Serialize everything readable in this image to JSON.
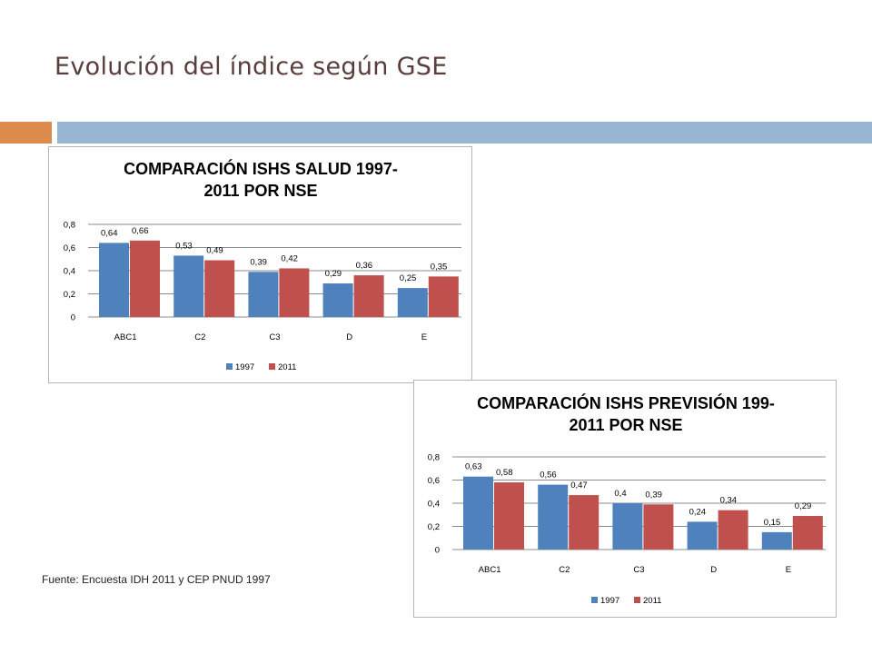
{
  "slide": {
    "title": "Evolución del índice según GSE",
    "source": "Fuente: Encuesta IDH 2011 y CEP PNUD 1997"
  },
  "colors": {
    "series_1997": "#4f81bd",
    "series_2011": "#c0504d",
    "accent_orange": "#dd8a4d",
    "accent_blue": "#98b6d4",
    "title_text": "#5a3e3b"
  },
  "chart_data": [
    {
      "type": "bar",
      "title_lines": [
        "COMPARACIÓN ISHS SALUD 1997-",
        "2011 POR NSE"
      ],
      "categories": [
        "ABC1",
        "C2",
        "C3",
        "D",
        "E"
      ],
      "series": [
        {
          "name": "1997",
          "values": [
            0.64,
            0.53,
            0.39,
            0.29,
            0.25
          ],
          "labels": [
            "0,64",
            "0,53",
            "0,39",
            "0,29",
            "0,25"
          ]
        },
        {
          "name": "2011",
          "values": [
            0.66,
            0.49,
            0.42,
            0.36,
            0.35
          ],
          "labels": [
            "0,66",
            "0,49",
            "0,42",
            "0,36",
            "0,35"
          ]
        }
      ],
      "yticks": [
        "0",
        "0,2",
        "0,4",
        "0,6",
        "0,8"
      ],
      "ylim": [
        0,
        0.8
      ],
      "grid": true,
      "legend": "bottom"
    },
    {
      "type": "bar",
      "title_lines": [
        "COMPARACIÓN ISHS PREVISIÓN 199-",
        "2011 POR NSE"
      ],
      "categories": [
        "ABC1",
        "C2",
        "C3",
        "D",
        "E"
      ],
      "series": [
        {
          "name": "1997",
          "values": [
            0.63,
            0.56,
            0.4,
            0.24,
            0.15
          ],
          "labels": [
            "0,63",
            "0,56",
            "0,4",
            "0,24",
            "0,15"
          ]
        },
        {
          "name": "2011",
          "values": [
            0.58,
            0.47,
            0.39,
            0.34,
            0.29
          ],
          "labels": [
            "0,58",
            "0,47",
            "0,39",
            "0,34",
            "0,29"
          ]
        }
      ],
      "yticks": [
        "0",
        "0,2",
        "0,4",
        "0,6",
        "0,8"
      ],
      "ylim": [
        0,
        0.8
      ],
      "grid": true,
      "legend": "bottom"
    }
  ]
}
